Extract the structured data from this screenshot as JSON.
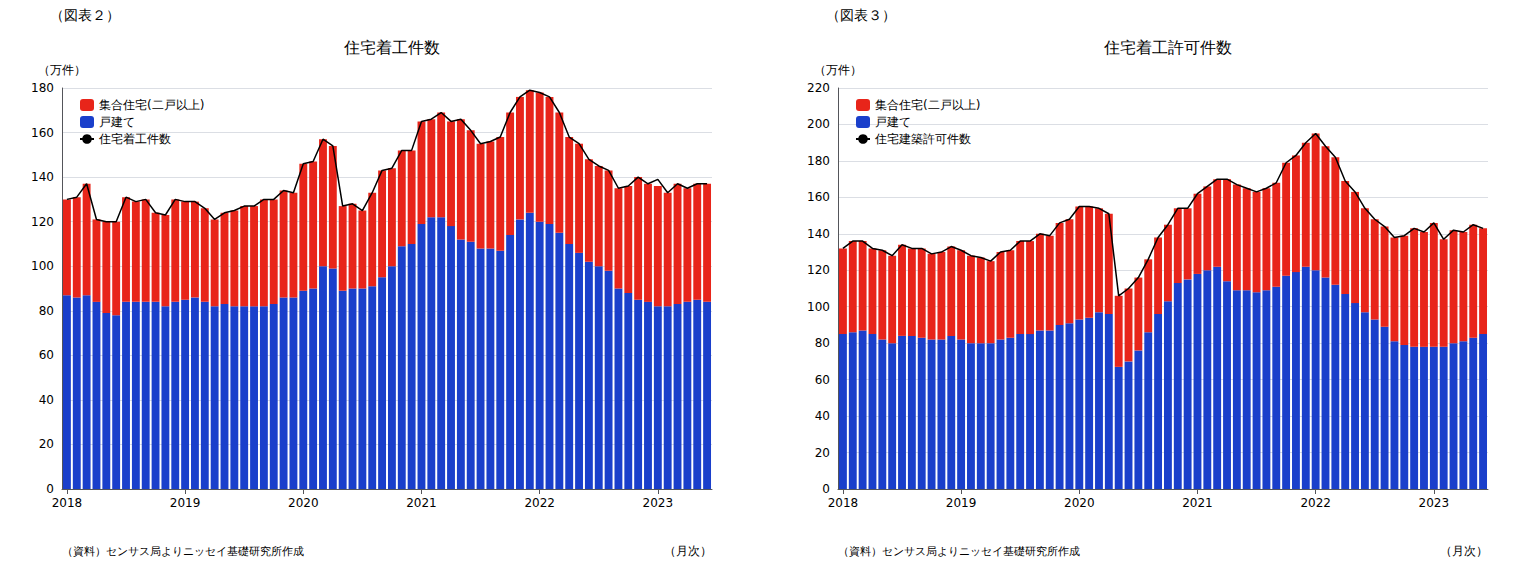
{
  "chart_data": [
    {
      "type": "bar",
      "title": "住宅着工件数",
      "subtitle": "（図表２）",
      "ylabel": "（万件）",
      "xlabel": "（月次）",
      "annotations": [
        "（資料）センサス局よりニッセイ基礎研究所作成"
      ],
      "stacked": true,
      "grid": true,
      "legend": "upper left",
      "ylim": [
        0,
        180
      ],
      "yticks": [
        0,
        20,
        40,
        60,
        80,
        100,
        120,
        140,
        160,
        180
      ],
      "categories": [
        "2018",
        null,
        null,
        null,
        null,
        null,
        null,
        null,
        null,
        null,
        null,
        null,
        "2019",
        null,
        null,
        null,
        null,
        null,
        null,
        null,
        null,
        null,
        null,
        null,
        "2020",
        null,
        null,
        null,
        null,
        null,
        null,
        null,
        null,
        null,
        null,
        null,
        "2021",
        null,
        null,
        null,
        null,
        null,
        null,
        null,
        null,
        null,
        null,
        null,
        "2022",
        null,
        null,
        null,
        null,
        null,
        null,
        null,
        null,
        null,
        null,
        null,
        "2023",
        null,
        null,
        null,
        null,
        null
      ],
      "series": [
        {
          "name": "戸建て",
          "type": "bar",
          "color": "#1a3fcb",
          "values": [
            87,
            86,
            87,
            84,
            79,
            78,
            84,
            84,
            84,
            84,
            82,
            84,
            85,
            86,
            84,
            82,
            83,
            82,
            82,
            82,
            82,
            83,
            86,
            86,
            89,
            90,
            100,
            99,
            89,
            90,
            90,
            91,
            95,
            100,
            109,
            110,
            119,
            122,
            122,
            118,
            112,
            111,
            108,
            108,
            107,
            114,
            121,
            124,
            120,
            119,
            115,
            110,
            106,
            102,
            100,
            98,
            90,
            88,
            85,
            84,
            82,
            82,
            83,
            84,
            85,
            84
          ]
        },
        {
          "name": "集合住宅(二戸以上)",
          "type": "bar",
          "color": "#e8251a",
          "values": [
            43,
            45,
            50,
            37,
            41,
            42,
            47,
            45,
            46,
            40,
            41,
            46,
            44,
            43,
            42,
            39,
            41,
            43,
            45,
            45,
            48,
            47,
            48,
            47,
            57,
            57,
            57,
            55,
            38,
            38,
            35,
            42,
            48,
            44,
            43,
            42,
            46,
            44,
            47,
            47,
            54,
            50,
            47,
            48,
            51,
            55,
            55,
            55,
            58,
            57,
            54,
            48,
            49,
            46,
            45,
            45,
            45,
            48,
            55,
            53,
            54,
            51,
            54,
            51,
            52,
            53
          ]
        },
        {
          "name": "住宅着工件数",
          "type": "line",
          "color": "#000000",
          "values": [
            130,
            131,
            137,
            121,
            120,
            120,
            131,
            129,
            130,
            124,
            123,
            130,
            129,
            129,
            126,
            121,
            124,
            125,
            127,
            127,
            130,
            130,
            134,
            133,
            146,
            147,
            157,
            154,
            127,
            128,
            125,
            133,
            143,
            144,
            152,
            152,
            165,
            166,
            169,
            165,
            166,
            161,
            155,
            156,
            158,
            169,
            176,
            179,
            178,
            176,
            169,
            158,
            155,
            148,
            145,
            143,
            135,
            136,
            140,
            137,
            139,
            133,
            137,
            135,
            137,
            137
          ]
        }
      ]
    },
    {
      "type": "bar",
      "title": "住宅着工許可件数",
      "subtitle": "（図表３）",
      "ylabel": "（万件）",
      "xlabel": "（月次）",
      "annotations": [
        "（資料）センサス局よりニッセイ基礎研究所作成"
      ],
      "stacked": true,
      "grid": true,
      "legend": "upper left",
      "ylim": [
        0,
        220
      ],
      "yticks": [
        0,
        20,
        40,
        60,
        80,
        100,
        120,
        140,
        160,
        180,
        200,
        220
      ],
      "categories": [
        "2018",
        null,
        null,
        null,
        null,
        null,
        null,
        null,
        null,
        null,
        null,
        null,
        "2019",
        null,
        null,
        null,
        null,
        null,
        null,
        null,
        null,
        null,
        null,
        null,
        "2020",
        null,
        null,
        null,
        null,
        null,
        null,
        null,
        null,
        null,
        null,
        null,
        "2021",
        null,
        null,
        null,
        null,
        null,
        null,
        null,
        null,
        null,
        null,
        null,
        "2022",
        null,
        null,
        null,
        null,
        null,
        null,
        null,
        null,
        null,
        null,
        null,
        "2023",
        null,
        null,
        null,
        null,
        null
      ],
      "series": [
        {
          "name": "戸建て",
          "type": "bar",
          "color": "#1a3fcb",
          "values": [
            85,
            86,
            87,
            85,
            82,
            80,
            84,
            84,
            83,
            82,
            82,
            84,
            82,
            80,
            80,
            80,
            82,
            83,
            85,
            85,
            87,
            87,
            90,
            91,
            93,
            94,
            97,
            96,
            67,
            70,
            76,
            86,
            96,
            103,
            113,
            115,
            118,
            120,
            122,
            114,
            109,
            109,
            108,
            109,
            111,
            117,
            119,
            122,
            120,
            116,
            112,
            107,
            102,
            97,
            93,
            89,
            81,
            79,
            78,
            78,
            78,
            78,
            80,
            81,
            83,
            85
          ]
        },
        {
          "name": "集合住宅(二戸以上)",
          "type": "bar",
          "color": "#e8251a",
          "values": [
            47,
            50,
            49,
            47,
            49,
            48,
            50,
            48,
            49,
            47,
            48,
            49,
            49,
            48,
            47,
            45,
            48,
            48,
            51,
            51,
            53,
            52,
            56,
            57,
            62,
            61,
            57,
            55,
            39,
            40,
            40,
            40,
            42,
            42,
            41,
            39,
            44,
            46,
            48,
            56,
            58,
            56,
            55,
            56,
            57,
            62,
            64,
            68,
            75,
            72,
            70,
            62,
            61,
            57,
            55,
            55,
            57,
            60,
            65,
            63,
            68,
            59,
            62,
            60,
            62,
            58
          ]
        },
        {
          "name": "住宅建築許可件数",
          "type": "line",
          "color": "#000000",
          "values": [
            132,
            136,
            136,
            132,
            131,
            128,
            134,
            132,
            132,
            129,
            130,
            133,
            131,
            128,
            127,
            125,
            130,
            131,
            136,
            136,
            140,
            139,
            146,
            148,
            155,
            155,
            154,
            151,
            106,
            110,
            116,
            126,
            138,
            145,
            154,
            154,
            162,
            166,
            170,
            170,
            167,
            165,
            163,
            165,
            168,
            179,
            183,
            190,
            195,
            188,
            182,
            169,
            163,
            154,
            148,
            144,
            138,
            139,
            143,
            141,
            146,
            137,
            142,
            141,
            145,
            143
          ]
        }
      ]
    }
  ]
}
